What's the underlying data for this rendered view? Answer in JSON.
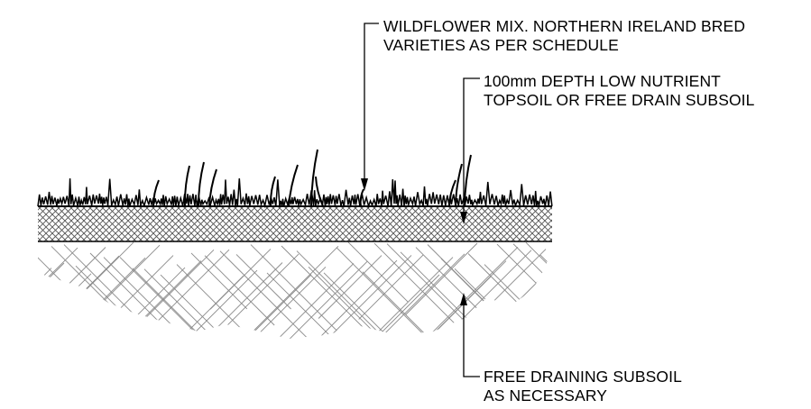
{
  "notes": {
    "wildflower": {
      "line1": "WILDFLOWER MIX. NORTHERN IRELAND BRED",
      "line2": "VARIETIES AS PER SCHEDULE"
    },
    "topsoil": {
      "line1": "100mm DEPTH LOW NUTRIENT",
      "line2": "TOPSOIL OR FREE DRAIN SUBSOIL"
    },
    "subsoil": {
      "line1": "FREE DRAINING SUBSOIL",
      "line2": "AS NECESSARY"
    }
  },
  "layers": [
    {
      "id": "wildflower-layer",
      "hatch": "grass"
    },
    {
      "id": "topsoil-layer",
      "hatch": "fine-crosshatch"
    },
    {
      "id": "subsoil-layer",
      "hatch": "coarse-crosshatch"
    }
  ],
  "colors": {
    "line": "#000000",
    "hatch": "#555555",
    "background": "#ffffff"
  }
}
